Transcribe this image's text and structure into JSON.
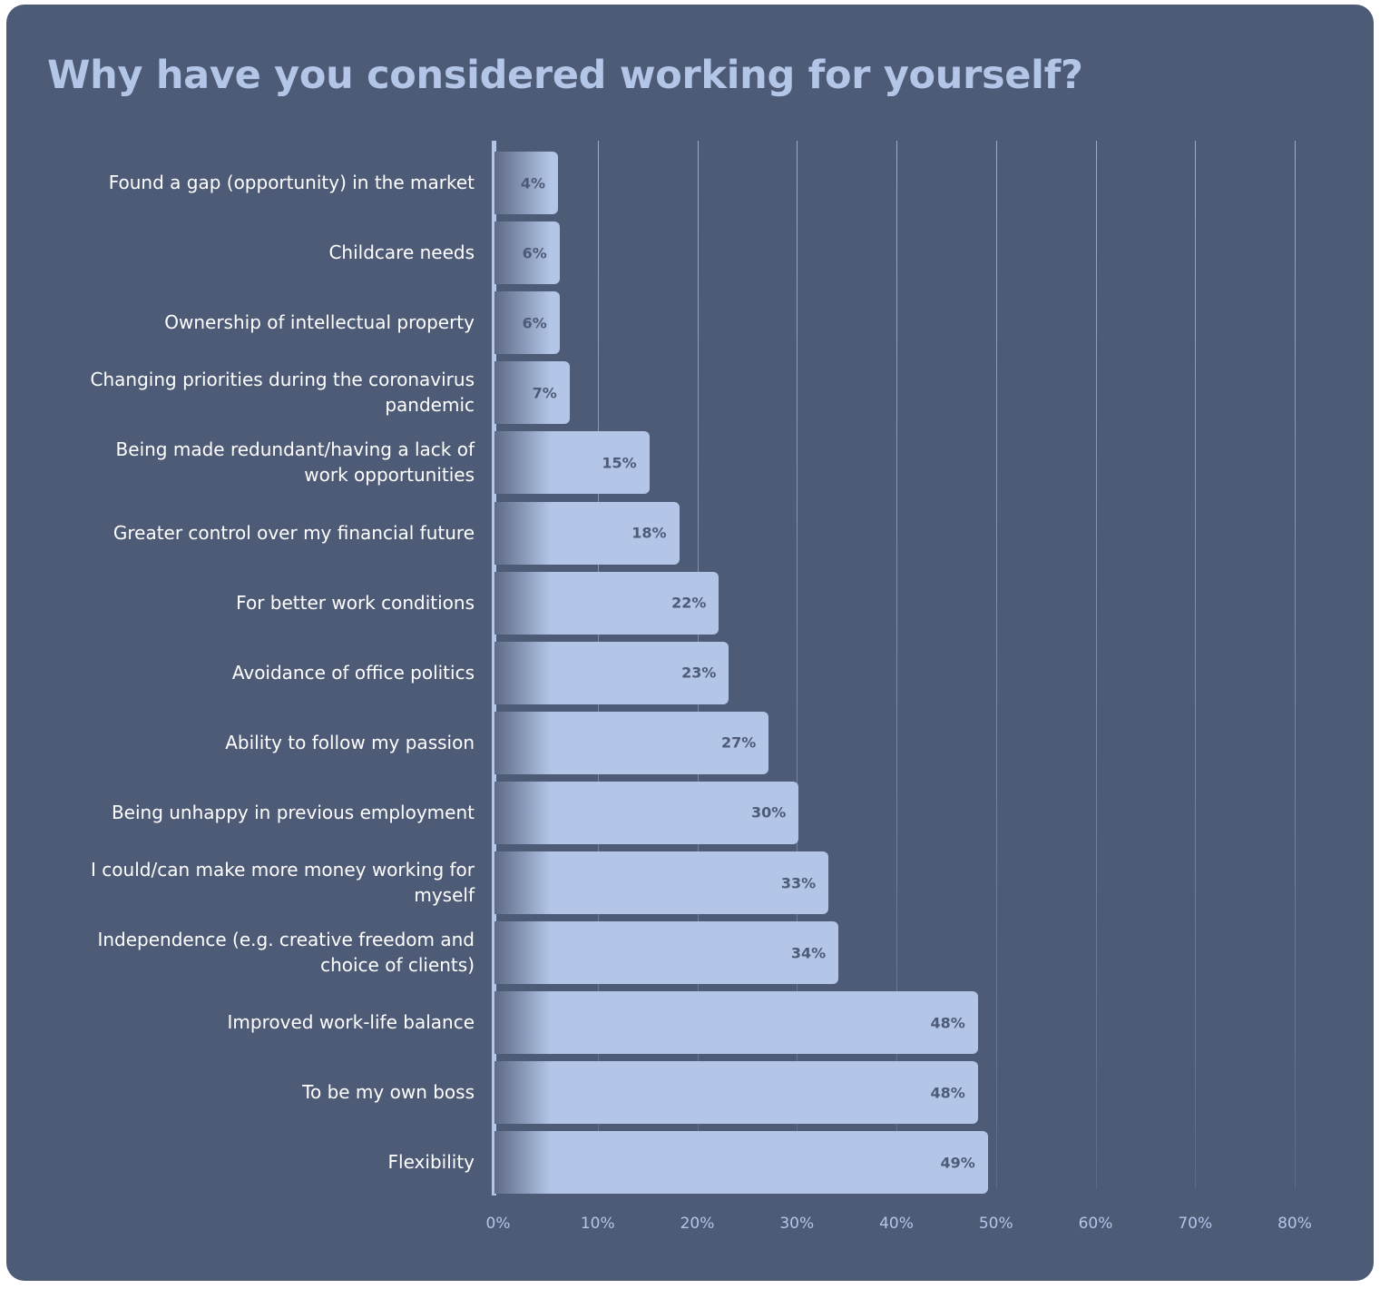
{
  "chart_data": {
    "type": "bar",
    "orientation": "horizontal",
    "title": "Why have you considered working for yourself?",
    "categories": [
      "Found a gap (opportunity) in the market",
      "Childcare needs",
      "Ownership of intellectual property",
      "Changing priorities during the coronavirus pandemic",
      "Being made redundant/having a lack of work opportunities",
      "Greater control over my financial future",
      "For better work conditions",
      "Avoidance of office politics",
      "Ability to follow my passion",
      "Being unhappy in previous employment",
      "I could/can make more money working for myself",
      "Independence (e.g. creative freedom and choice of clients)",
      "Improved work-life balance",
      "To be my own boss",
      "Flexibility"
    ],
    "values": [
      4,
      6,
      6,
      7,
      15,
      18,
      22,
      23,
      27,
      30,
      33,
      34,
      48,
      48,
      49
    ],
    "data_labels": [
      "4%",
      "6%",
      "6%",
      "7%",
      "15%",
      "18%",
      "22%",
      "23%",
      "27%",
      "30%",
      "33%",
      "34%",
      "48%",
      "48%",
      "49%"
    ],
    "xlim": [
      0,
      80
    ],
    "x_ticks": [
      "0%",
      "10%",
      "20%",
      "30%",
      "40%",
      "50%",
      "60%",
      "70%",
      "80%"
    ],
    "xlabel": "",
    "ylabel": "",
    "grid": "vertical",
    "legend": "none",
    "colors": {
      "background": "#4e5b77",
      "bar": "#b3c6e8",
      "title": "#b3c6e8",
      "label": "#ffffff"
    }
  }
}
